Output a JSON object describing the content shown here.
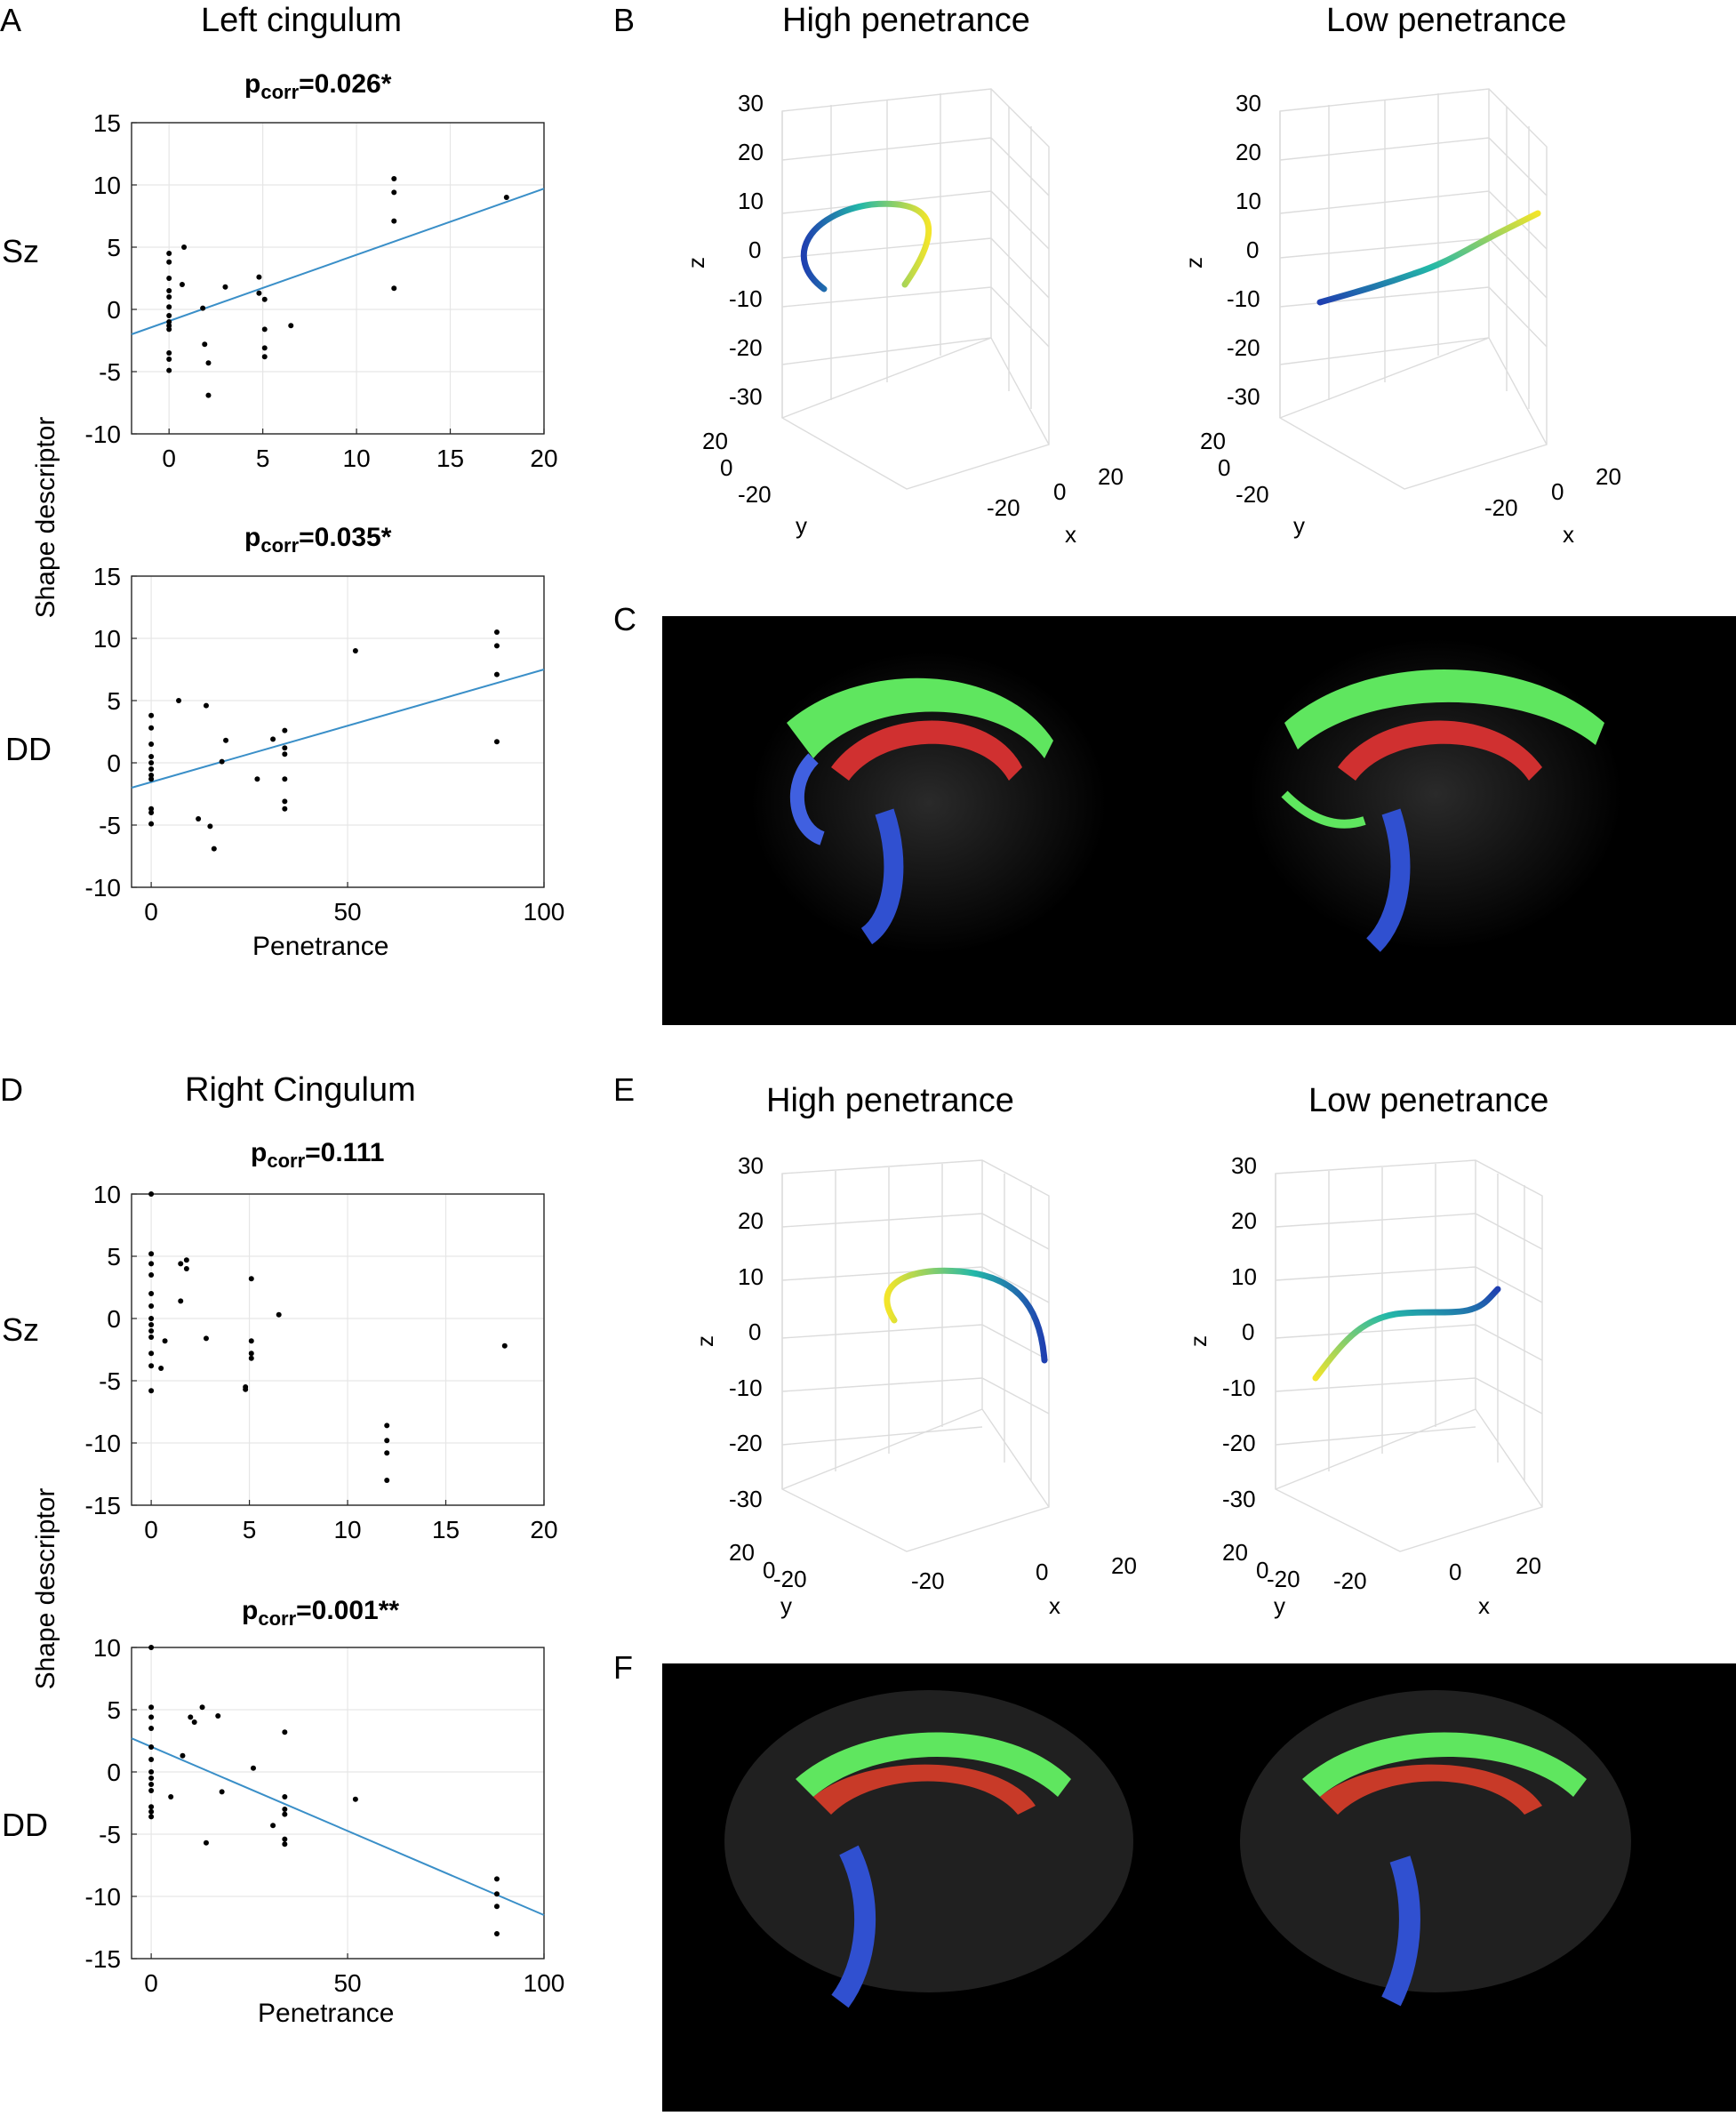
{
  "panels": {
    "A": {
      "letter": "A",
      "title": "Left cingulum"
    },
    "B": {
      "letter": "B",
      "left_title": "High penetrance",
      "right_title": "Low penetrance"
    },
    "C": {
      "letter": "C"
    },
    "D": {
      "letter": "D",
      "title": "Right Cingulum"
    },
    "E": {
      "letter": "E",
      "left_title": "High penetrance",
      "right_title": "Low penetrance"
    },
    "F": {
      "letter": "F"
    }
  },
  "row_labels": {
    "sz": "Sz",
    "dd": "DD"
  },
  "shared_ylabel": "Shape descriptor",
  "xlabel": "Penetrance",
  "pcorr": {
    "base": "p",
    "sub": "corr"
  },
  "axis3d": {
    "xlabel": "x",
    "ylabel": "y",
    "zlabel": "z"
  },
  "chart_data": [
    {
      "id": "A-Sz",
      "type": "scatter",
      "title": "p_corr=0.026*",
      "title_value": "=0.026*",
      "xlim": [
        -2,
        20
      ],
      "ylim": [
        -10,
        15
      ],
      "xticks": [
        0,
        5,
        10,
        15,
        20
      ],
      "yticks": [
        -10,
        -5,
        0,
        5,
        10,
        15
      ],
      "xlabel": "",
      "ylabel": "Shape descriptor",
      "fit_line": [
        [
          -2,
          -2
        ],
        [
          20,
          9.7
        ]
      ],
      "points": [
        [
          0,
          4.5
        ],
        [
          0,
          3.8
        ],
        [
          0,
          2.5
        ],
        [
          0,
          1.5
        ],
        [
          0,
          1
        ],
        [
          0,
          0.2
        ],
        [
          0,
          -0.5
        ],
        [
          0,
          -1
        ],
        [
          0,
          -1.3
        ],
        [
          0,
          -1.6
        ],
        [
          0,
          -3.5
        ],
        [
          0,
          -4
        ],
        [
          0,
          -4.9
        ],
        [
          0.7,
          2
        ],
        [
          0.8,
          5
        ],
        [
          1.8,
          0.1
        ],
        [
          1.9,
          -2.8
        ],
        [
          2.1,
          -4.3
        ],
        [
          2.1,
          -6.9
        ],
        [
          3,
          1.8
        ],
        [
          4.8,
          2.6
        ],
        [
          4.8,
          1.3
        ],
        [
          5.1,
          0.8
        ],
        [
          5.1,
          -1.6
        ],
        [
          5.1,
          -3.1
        ],
        [
          5.1,
          -3.8
        ],
        [
          6.5,
          -1.3
        ],
        [
          12,
          10.5
        ],
        [
          12,
          9.4
        ],
        [
          12,
          7.1
        ],
        [
          12,
          1.7
        ],
        [
          18,
          9
        ]
      ]
    },
    {
      "id": "A-DD",
      "type": "scatter",
      "title": "p_corr=0.035*",
      "title_value": "=0.035*",
      "xlim": [
        -5,
        100
      ],
      "ylim": [
        -10,
        15
      ],
      "xticks": [
        0,
        50,
        100
      ],
      "yticks": [
        -10,
        -5,
        0,
        5,
        10,
        15
      ],
      "xlabel": "Penetrance",
      "ylabel": "Shape descriptor",
      "fit_line": [
        [
          -5,
          -2
        ],
        [
          100,
          7.5
        ]
      ],
      "points": [
        [
          0,
          3.8
        ],
        [
          0,
          2.8
        ],
        [
          0,
          1.5
        ],
        [
          0,
          0.5
        ],
        [
          0,
          0
        ],
        [
          0,
          -0.5
        ],
        [
          0,
          -1
        ],
        [
          0,
          -1.3
        ],
        [
          0,
          -3.7
        ],
        [
          0,
          -4
        ],
        [
          0,
          -4.9
        ],
        [
          7,
          5
        ],
        [
          12,
          -4.5
        ],
        [
          14,
          4.6
        ],
        [
          15,
          -5.1
        ],
        [
          16,
          -6.9
        ],
        [
          18,
          0.1
        ],
        [
          19,
          1.8
        ],
        [
          27,
          -1.3
        ],
        [
          31,
          1.9
        ],
        [
          34,
          2.6
        ],
        [
          34,
          1.2
        ],
        [
          34,
          0.7
        ],
        [
          34,
          -1.3
        ],
        [
          34,
          -3.1
        ],
        [
          34,
          -3.7
        ],
        [
          52,
          9
        ],
        [
          88,
          10.5
        ],
        [
          88,
          9.4
        ],
        [
          88,
          7.1
        ],
        [
          88,
          1.7
        ]
      ]
    },
    {
      "id": "D-Sz",
      "type": "scatter",
      "title": "p_corr=0.111",
      "title_value": "=0.111",
      "xlim": [
        -1,
        20
      ],
      "ylim": [
        -15,
        10
      ],
      "xticks": [
        0,
        5,
        10,
        15,
        20
      ],
      "yticks": [
        -15,
        -10,
        -5,
        0,
        5,
        10
      ],
      "xlabel": "",
      "ylabel": "Shape descriptor",
      "fit_line": null,
      "points": [
        [
          0,
          10
        ],
        [
          0,
          5.2
        ],
        [
          0,
          4.4
        ],
        [
          0,
          3.5
        ],
        [
          0,
          2
        ],
        [
          0,
          1
        ],
        [
          0,
          0
        ],
        [
          0,
          -0.5
        ],
        [
          0,
          -1
        ],
        [
          0,
          -1.5
        ],
        [
          0,
          -2.8
        ],
        [
          0,
          -3.8
        ],
        [
          0,
          -5.8
        ],
        [
          0.5,
          -4
        ],
        [
          0.7,
          -1.8
        ],
        [
          1.5,
          4.4
        ],
        [
          1.5,
          1.4
        ],
        [
          1.8,
          4.7
        ],
        [
          1.8,
          4
        ],
        [
          2.8,
          -1.6
        ],
        [
          4.8,
          -5.5
        ],
        [
          4.8,
          -5.7
        ],
        [
          5.1,
          3.2
        ],
        [
          5.1,
          -1.8
        ],
        [
          5.1,
          -2.8
        ],
        [
          5.1,
          -3.2
        ],
        [
          6.5,
          0.3
        ],
        [
          12,
          -8.6
        ],
        [
          12,
          -9.8
        ],
        [
          12,
          -10.8
        ],
        [
          12,
          -13
        ],
        [
          18,
          -2.2
        ]
      ]
    },
    {
      "id": "D-DD",
      "type": "scatter",
      "title": "p_corr=0.001**",
      "title_value": "=0.001**",
      "xlim": [
        -5,
        100
      ],
      "ylim": [
        -15,
        10
      ],
      "xticks": [
        0,
        50,
        100
      ],
      "yticks": [
        -15,
        -10,
        -5,
        0,
        5,
        10
      ],
      "xlabel": "Penetrance",
      "ylabel": "Shape descriptor",
      "fit_line": [
        [
          -5,
          2.7
        ],
        [
          100,
          -11.5
        ]
      ],
      "points": [
        [
          0,
          10
        ],
        [
          0,
          5.2
        ],
        [
          0,
          4.4
        ],
        [
          0,
          3.5
        ],
        [
          0,
          2
        ],
        [
          0,
          1
        ],
        [
          0,
          0
        ],
        [
          0,
          -0.5
        ],
        [
          0,
          -1
        ],
        [
          0,
          -1.5
        ],
        [
          0,
          -2.8
        ],
        [
          0,
          -3.2
        ],
        [
          0,
          -3.6
        ],
        [
          5,
          -2
        ],
        [
          8,
          1.3
        ],
        [
          10,
          4.4
        ],
        [
          11,
          4
        ],
        [
          13,
          5.2
        ],
        [
          14,
          -5.7
        ],
        [
          17,
          4.5
        ],
        [
          18,
          -1.6
        ],
        [
          26,
          0.3
        ],
        [
          31,
          -4.3
        ],
        [
          34,
          3.2
        ],
        [
          34,
          -2
        ],
        [
          34,
          -3
        ],
        [
          34,
          -3.4
        ],
        [
          34,
          -5.4
        ],
        [
          34,
          -5.8
        ],
        [
          52,
          -2.2
        ],
        [
          88,
          -8.6
        ],
        [
          88,
          -9.8
        ],
        [
          88,
          -10.8
        ],
        [
          88,
          -13
        ]
      ]
    },
    {
      "id": "B-high",
      "type": "line",
      "title": "High penetrance",
      "view": "3d",
      "zticks": [
        -30,
        -20,
        -10,
        0,
        10,
        20,
        30
      ],
      "xticks": [
        -20,
        0,
        20
      ],
      "yticks": [
        -20,
        0,
        20
      ]
    },
    {
      "id": "B-low",
      "type": "line",
      "title": "Low penetrance",
      "view": "3d",
      "zticks": [
        -30,
        -20,
        -10,
        0,
        10,
        20,
        30
      ],
      "xticks": [
        -20,
        0,
        20
      ],
      "yticks": [
        -20,
        0,
        20
      ]
    },
    {
      "id": "E-high",
      "type": "line",
      "title": "High penetrance",
      "view": "3d",
      "zticks": [
        -30,
        -20,
        -10,
        0,
        10,
        20,
        30
      ],
      "xticks": [
        -20,
        0,
        20
      ],
      "yticks": [
        -20,
        0,
        20
      ]
    },
    {
      "id": "E-low",
      "type": "line",
      "title": "Low penetrance",
      "view": "3d",
      "zticks": [
        -30,
        -20,
        -10,
        0,
        10,
        20,
        30
      ],
      "xticks": [
        -20,
        0,
        20
      ],
      "yticks": [
        -20,
        0,
        20
      ]
    }
  ],
  "colors": {
    "fit": "#3a8fc8",
    "tract_start": "#1f3fb0",
    "tract_mid": "#23b8a8",
    "tract_end": "#f3e52a"
  }
}
